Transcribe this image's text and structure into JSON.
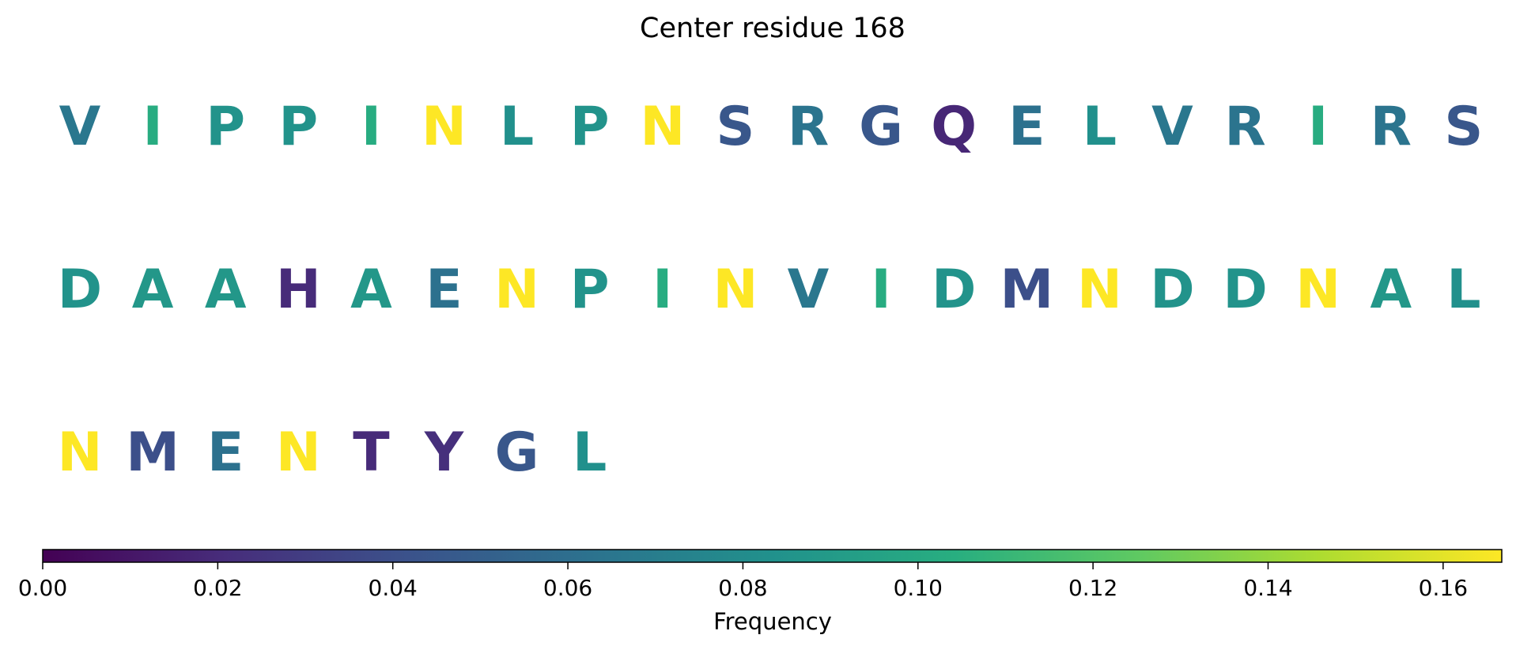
{
  "chart_data": {
    "type": "sequence-logo",
    "title": "Center residue 168",
    "residues": [
      {
        "letter": "V",
        "frequency": 0.066
      },
      {
        "letter": "I",
        "frequency": 0.103
      },
      {
        "letter": "P",
        "frequency": 0.085
      },
      {
        "letter": "P",
        "frequency": 0.085
      },
      {
        "letter": "I",
        "frequency": 0.103
      },
      {
        "letter": "N",
        "frequency": 0.167
      },
      {
        "letter": "L",
        "frequency": 0.083
      },
      {
        "letter": "P",
        "frequency": 0.085
      },
      {
        "letter": "N",
        "frequency": 0.167
      },
      {
        "letter": "S",
        "frequency": 0.045
      },
      {
        "letter": "R",
        "frequency": 0.064
      },
      {
        "letter": "G",
        "frequency": 0.045
      },
      {
        "letter": "Q",
        "frequency": 0.018
      },
      {
        "letter": "E",
        "frequency": 0.062
      },
      {
        "letter": "L",
        "frequency": 0.083
      },
      {
        "letter": "V",
        "frequency": 0.066
      },
      {
        "letter": "R",
        "frequency": 0.064
      },
      {
        "letter": "I",
        "frequency": 0.103
      },
      {
        "letter": "R",
        "frequency": 0.064
      },
      {
        "letter": "S",
        "frequency": 0.045
      },
      {
        "letter": "D",
        "frequency": 0.085
      },
      {
        "letter": "A",
        "frequency": 0.088
      },
      {
        "letter": "A",
        "frequency": 0.088
      },
      {
        "letter": "H",
        "frequency": 0.02
      },
      {
        "letter": "A",
        "frequency": 0.088
      },
      {
        "letter": "E",
        "frequency": 0.062
      },
      {
        "letter": "N",
        "frequency": 0.167
      },
      {
        "letter": "P",
        "frequency": 0.085
      },
      {
        "letter": "I",
        "frequency": 0.103
      },
      {
        "letter": "N",
        "frequency": 0.167
      },
      {
        "letter": "V",
        "frequency": 0.066
      },
      {
        "letter": "I",
        "frequency": 0.103
      },
      {
        "letter": "D",
        "frequency": 0.085
      },
      {
        "letter": "M",
        "frequency": 0.04
      },
      {
        "letter": "N",
        "frequency": 0.167
      },
      {
        "letter": "D",
        "frequency": 0.085
      },
      {
        "letter": "D",
        "frequency": 0.085
      },
      {
        "letter": "N",
        "frequency": 0.167
      },
      {
        "letter": "A",
        "frequency": 0.088
      },
      {
        "letter": "L",
        "frequency": 0.083
      },
      {
        "letter": "N",
        "frequency": 0.167
      },
      {
        "letter": "M",
        "frequency": 0.04
      },
      {
        "letter": "E",
        "frequency": 0.062
      },
      {
        "letter": "N",
        "frequency": 0.167
      },
      {
        "letter": "T",
        "frequency": 0.02
      },
      {
        "letter": "Y",
        "frequency": 0.022
      },
      {
        "letter": "G",
        "frequency": 0.045
      },
      {
        "letter": "L",
        "frequency": 0.083
      }
    ],
    "letters_per_row": 20,
    "colorbar": {
      "label": "Frequency",
      "colormap": "viridis",
      "vmin": 0.0,
      "vmax": 0.1667,
      "ticks": [
        0.0,
        0.02,
        0.04,
        0.06,
        0.08,
        0.1,
        0.12,
        0.14,
        0.16
      ],
      "tick_labels": [
        "0.00",
        "0.02",
        "0.04",
        "0.06",
        "0.08",
        "0.10",
        "0.12",
        "0.14",
        "0.16"
      ]
    }
  }
}
